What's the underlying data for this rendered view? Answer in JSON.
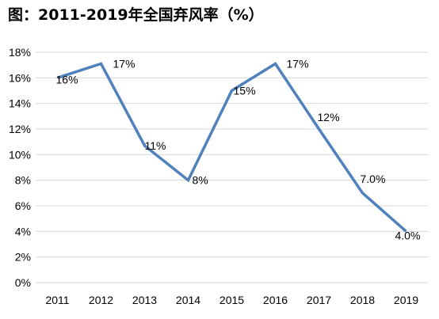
{
  "chart_data": {
    "type": "line",
    "title": "图：2011-2019年全国弃风率（%）",
    "xlabel": "",
    "ylabel": "",
    "categories": [
      "2011",
      "2012",
      "2013",
      "2014",
      "2015",
      "2016",
      "2017",
      "2018",
      "2019"
    ],
    "series": [
      {
        "values": [
          16,
          17.1,
          10.7,
          8,
          15,
          17.1,
          12,
          7,
          4
        ],
        "data_labels": [
          "16%",
          "17%",
          "11%",
          "8%",
          "15%",
          "17%",
          "12%",
          "7.0%",
          "4.0%"
        ]
      }
    ],
    "y_ticks": [
      0,
      2,
      4,
      6,
      8,
      10,
      12,
      14,
      16,
      18
    ],
    "y_tick_labels": [
      "0%",
      "2%",
      "4%",
      "6%",
      "8%",
      "10%",
      "12%",
      "14%",
      "16%",
      "18%"
    ],
    "ylim": [
      0,
      18
    ],
    "grid": "horizontal",
    "legend": "none",
    "colors": {
      "line": "#4F81BD",
      "grid": "#D9D9D9",
      "text": "#000000"
    }
  }
}
